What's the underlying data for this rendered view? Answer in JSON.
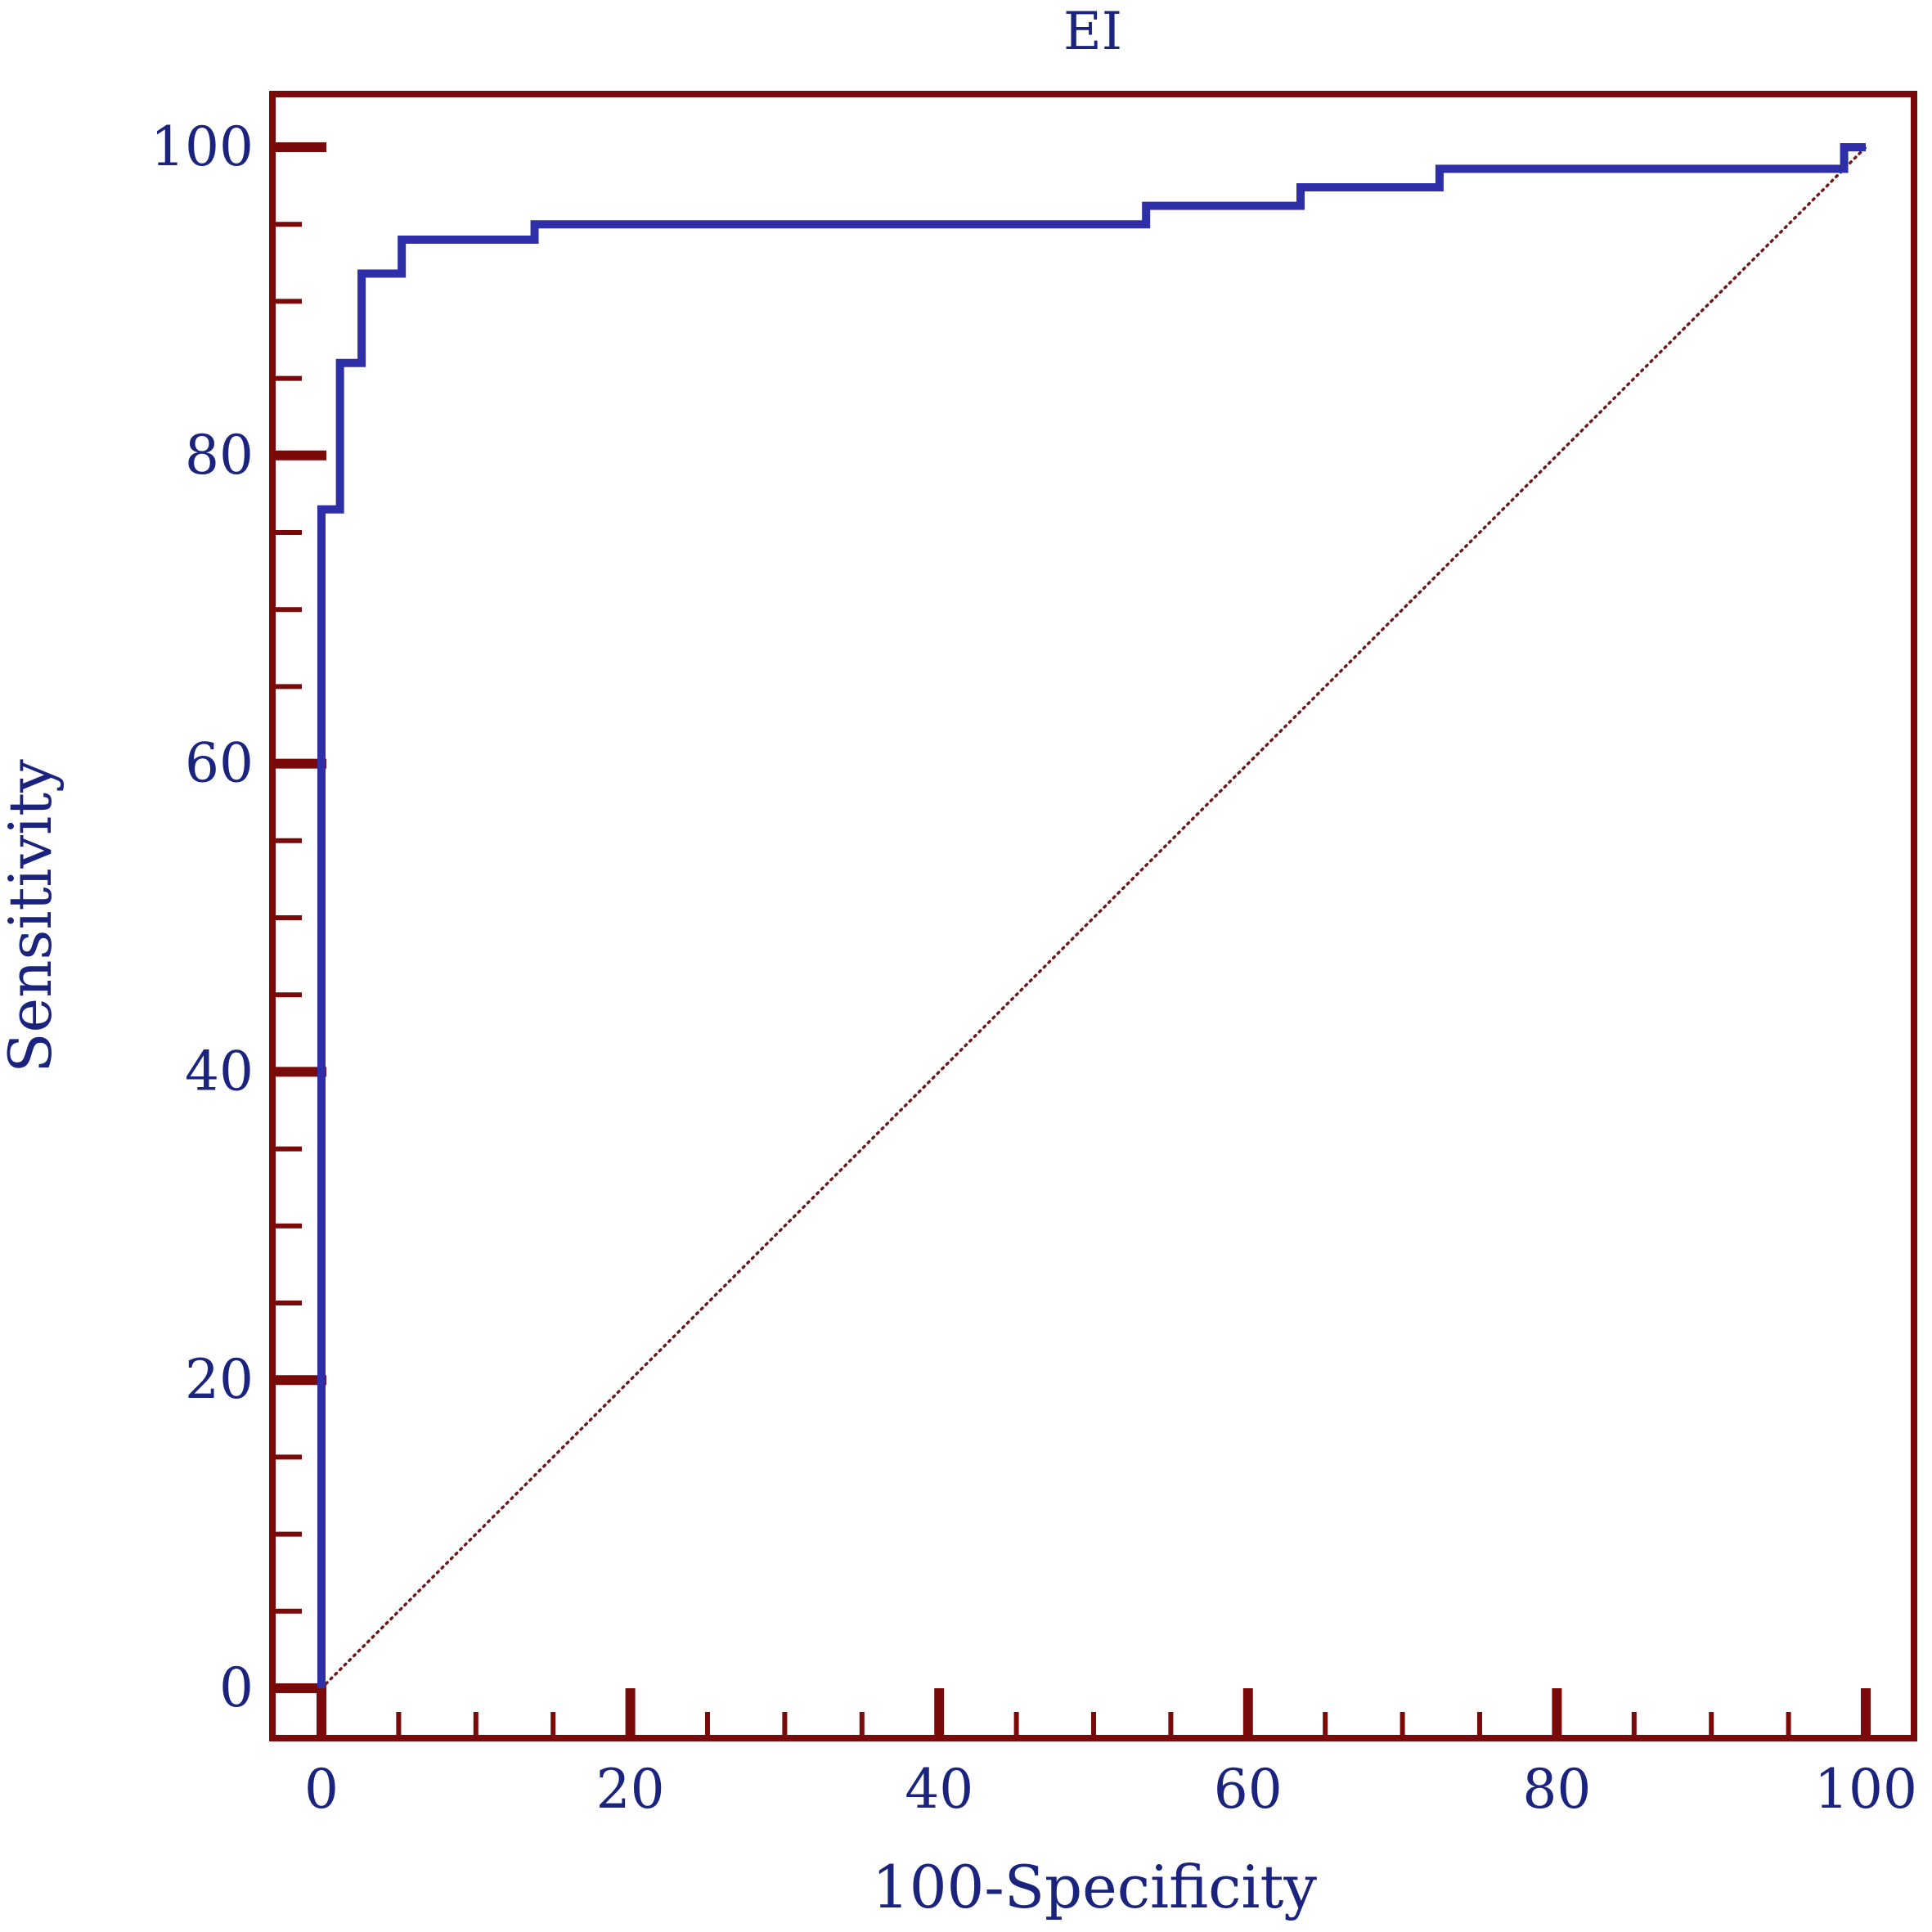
{
  "colors": {
    "frame": "#7a0a0a",
    "roc_line": "#2e2ea8",
    "reference_line": "#6b1a1a",
    "text": "#1a237e",
    "background": "#ffffff"
  },
  "chart_data": {
    "type": "line",
    "title": "EI",
    "xlabel": "100-Specificity",
    "ylabel": "Sensitivity",
    "xlim": [
      -3,
      103
    ],
    "ylim": [
      -3,
      103
    ],
    "x_ticks": [
      0,
      20,
      40,
      60,
      80,
      100
    ],
    "y_ticks": [
      0,
      20,
      40,
      60,
      80,
      100
    ],
    "x_tick_labels": [
      "0",
      "20",
      "40",
      "60",
      "80",
      "100"
    ],
    "y_tick_labels": [
      "0",
      "20",
      "40",
      "60",
      "80",
      "100"
    ],
    "minor_tick_step": 5,
    "grid": false,
    "legend": "none",
    "series": [
      {
        "style": "step",
        "x": [
          0,
          0,
          1.2,
          1.2,
          2.6,
          2.6,
          5.2,
          5.2,
          13.8,
          13.8,
          53.4,
          53.4,
          63.4,
          63.4,
          72.4,
          72.4,
          98.6,
          98.6,
          100
        ],
        "y": [
          0,
          76.5,
          76.5,
          86,
          86,
          91.8,
          91.8,
          94,
          94,
          95,
          95,
          96.2,
          96.2,
          97.4,
          97.4,
          98.6,
          98.6,
          100,
          100
        ]
      },
      {
        "style": "dotted",
        "x": [
          0,
          100
        ],
        "y": [
          0,
          100
        ]
      }
    ]
  }
}
